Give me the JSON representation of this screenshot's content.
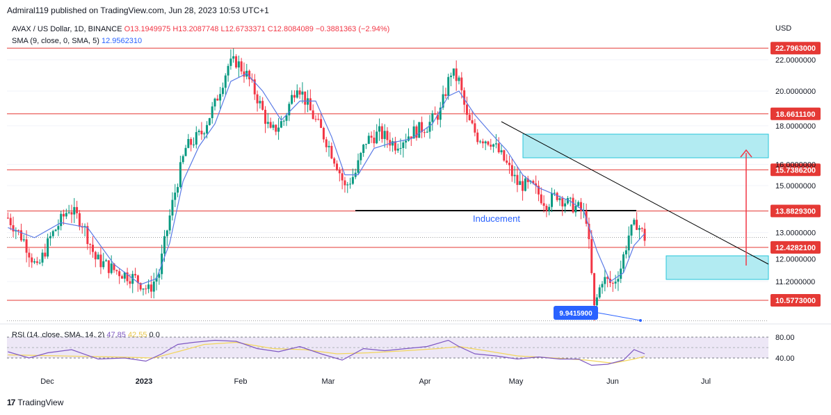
{
  "header": {
    "published": "Admiral119 published on TradingView.com, Jun 28, 2023 10:53 UTC+1"
  },
  "legend": {
    "symbol": "AVAX / US Dollar, 1D, BINANCE",
    "open": "O13.1949975",
    "high": "H13.2087748",
    "low": "L12.6733371",
    "close": "C12.8084089",
    "change": "−0.3881363 (−2.94%)",
    "sma_label": "SMA (9, close, 0, SMA, 5)",
    "sma_value": "12.9562310"
  },
  "rsi_legend": {
    "label": "RSI (14, close, SMA, 14, 2)",
    "rsi_value": "47.85",
    "sma_value": "42.55",
    "extra": "0 0"
  },
  "footer": {
    "logo": "17",
    "brand": "TradingView"
  },
  "chart_data": {
    "type": "line",
    "currency": "USD",
    "y_scale": "log",
    "y_ticks": [
      "22.0000000",
      "20.0000000",
      "18.0000000",
      "16.0000000",
      "15.0000000",
      "13.0000000",
      "12.0000000",
      "11.2000000"
    ],
    "rsi_ticks": [
      "80.00",
      "40.00"
    ],
    "x_ticks": [
      "Dec",
      "2023",
      "Feb",
      "Mar",
      "Apr",
      "May",
      "Jun",
      "Jul"
    ],
    "levels": [
      {
        "value": "22.7963000",
        "num": 22.7963
      },
      {
        "value": "18.6611100",
        "num": 18.66111
      },
      {
        "value": "15.7386200",
        "num": 15.73862
      },
      {
        "value": "13.8829300",
        "num": 13.88293
      },
      {
        "value": "12.4282100",
        "num": 12.42821
      },
      {
        "value": "10.5773000",
        "num": 10.5773
      }
    ],
    "annotations": {
      "inducement_label": "Inducement",
      "low_callout": "9.9415900",
      "low_value": 9.94159
    },
    "price_path": [
      [
        0,
        13.6
      ],
      [
        6,
        12.7
      ],
      [
        11,
        11.6
      ],
      [
        16,
        12.8
      ],
      [
        23,
        14.0
      ],
      [
        28,
        13.4
      ],
      [
        33,
        12.0
      ],
      [
        40,
        11.6
      ],
      [
        48,
        11.3
      ],
      [
        53,
        10.9
      ],
      [
        57,
        11.5
      ],
      [
        62,
        14.2
      ],
      [
        67,
        16.8
      ],
      [
        73,
        17.6
      ],
      [
        78,
        19.2
      ],
      [
        83,
        21.6
      ],
      [
        86,
        21.9
      ],
      [
        90,
        21.0
      ],
      [
        94,
        19.6
      ],
      [
        99,
        17.6
      ],
      [
        104,
        18.3
      ],
      [
        109,
        20.5
      ],
      [
        114,
        18.8
      ],
      [
        120,
        17.2
      ],
      [
        124,
        16.0
      ],
      [
        127,
        14.9
      ],
      [
        131,
        15.6
      ],
      [
        135,
        17.2
      ],
      [
        140,
        17.6
      ],
      [
        146,
        17.0
      ],
      [
        152,
        17.6
      ],
      [
        158,
        18.0
      ],
      [
        163,
        18.8
      ],
      [
        167,
        21.2
      ],
      [
        170,
        20.6
      ],
      [
        173,
        18.4
      ],
      [
        177,
        17.4
      ],
      [
        182,
        17.2
      ],
      [
        187,
        16.2
      ],
      [
        192,
        15.1
      ],
      [
        198,
        14.9
      ],
      [
        203,
        14.2
      ],
      [
        207,
        14.6
      ],
      [
        211,
        14.2
      ],
      [
        215,
        14.0
      ],
      [
        218,
        13.6
      ],
      [
        221,
        10.3
      ],
      [
        224,
        11.3
      ],
      [
        228,
        11.1
      ],
      [
        231,
        11.7
      ],
      [
        234,
        12.9
      ],
      [
        237,
        13.4
      ],
      [
        240,
        12.8
      ]
    ],
    "sma_path": [
      [
        0,
        13.2
      ],
      [
        10,
        12.8
      ],
      [
        20,
        13.4
      ],
      [
        30,
        13.2
      ],
      [
        40,
        11.8
      ],
      [
        50,
        11.1
      ],
      [
        56,
        11.3
      ],
      [
        61,
        12.6
      ],
      [
        66,
        15.2
      ],
      [
        72,
        16.9
      ],
      [
        78,
        18.1
      ],
      [
        84,
        20.6
      ],
      [
        90,
        21.1
      ],
      [
        96,
        20.0
      ],
      [
        103,
        18.3
      ],
      [
        110,
        19.4
      ],
      [
        116,
        19.4
      ],
      [
        122,
        17.4
      ],
      [
        127,
        15.5
      ],
      [
        132,
        15.5
      ],
      [
        138,
        16.8
      ],
      [
        145,
        17.1
      ],
      [
        152,
        17.3
      ],
      [
        160,
        18.1
      ],
      [
        166,
        19.7
      ],
      [
        170,
        20.0
      ],
      [
        176,
        18.6
      ],
      [
        182,
        17.6
      ],
      [
        188,
        16.7
      ],
      [
        194,
        15.5
      ],
      [
        200,
        14.9
      ],
      [
        206,
        14.6
      ],
      [
        212,
        14.3
      ],
      [
        217,
        13.9
      ],
      [
        222,
        12.3
      ],
      [
        227,
        11.2
      ],
      [
        232,
        11.5
      ],
      [
        236,
        12.5
      ],
      [
        240,
        12.96
      ]
    ],
    "rsi_path": [
      [
        0,
        52
      ],
      [
        8,
        40
      ],
      [
        15,
        50
      ],
      [
        24,
        56
      ],
      [
        34,
        38
      ],
      [
        44,
        40
      ],
      [
        52,
        34
      ],
      [
        58,
        48
      ],
      [
        64,
        66
      ],
      [
        70,
        70
      ],
      [
        78,
        74
      ],
      [
        86,
        72
      ],
      [
        94,
        58
      ],
      [
        102,
        52
      ],
      [
        110,
        62
      ],
      [
        118,
        48
      ],
      [
        126,
        36
      ],
      [
        134,
        58
      ],
      [
        142,
        54
      ],
      [
        150,
        58
      ],
      [
        158,
        62
      ],
      [
        166,
        74
      ],
      [
        170,
        62
      ],
      [
        176,
        48
      ],
      [
        184,
        44
      ],
      [
        192,
        38
      ],
      [
        200,
        42
      ],
      [
        208,
        38
      ],
      [
        215,
        38
      ],
      [
        220,
        26
      ],
      [
        226,
        28
      ],
      [
        232,
        36
      ],
      [
        236,
        56
      ],
      [
        240,
        48
      ]
    ],
    "rsi_sma_path": [
      [
        0,
        46
      ],
      [
        20,
        44
      ],
      [
        40,
        42
      ],
      [
        55,
        40
      ],
      [
        64,
        52
      ],
      [
        74,
        66
      ],
      [
        86,
        70
      ],
      [
        100,
        58
      ],
      [
        112,
        56
      ],
      [
        124,
        48
      ],
      [
        136,
        50
      ],
      [
        150,
        54
      ],
      [
        162,
        58
      ],
      [
        170,
        62
      ],
      [
        180,
        54
      ],
      [
        192,
        44
      ],
      [
        206,
        40
      ],
      [
        218,
        36
      ],
      [
        228,
        30
      ],
      [
        236,
        38
      ],
      [
        240,
        43
      ]
    ],
    "xlabel": "",
    "ylabel": ""
  }
}
